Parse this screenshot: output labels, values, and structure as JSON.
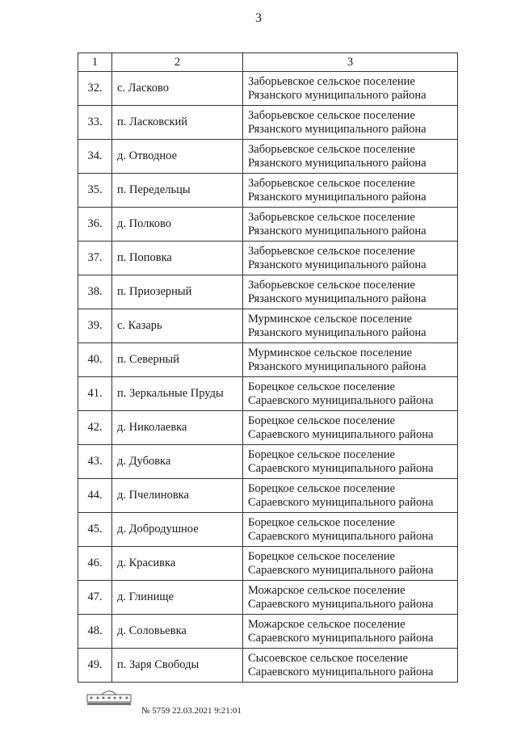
{
  "page_number": "3",
  "table": {
    "headers": [
      "1",
      "2",
      "3"
    ],
    "rows": [
      {
        "num": "32.",
        "name": "с. Ласково",
        "area": [
          "Заборьевское сельское поселение",
          "Рязанского муниципального района"
        ]
      },
      {
        "num": "33.",
        "name": "п. Ласковский",
        "area": [
          "Заборьевское сельское поселение",
          "Рязанского муниципального района"
        ]
      },
      {
        "num": "34.",
        "name": "д. Отводное",
        "area": [
          "Заборьевское сельское поселение",
          "Рязанского муниципального района"
        ]
      },
      {
        "num": "35.",
        "name": "п. Передельцы",
        "area": [
          "Заборьевское сельское поселение",
          "Рязанского муниципального района"
        ]
      },
      {
        "num": "36.",
        "name": "д. Полково",
        "area": [
          "Заборьевское сельское поселение",
          "Рязанского муниципального района"
        ]
      },
      {
        "num": "37.",
        "name": "п. Поповка",
        "area": [
          "Заборьевское сельское поселение",
          "Рязанского муниципального района"
        ]
      },
      {
        "num": "38.",
        "name": "п. Приозерный",
        "area": [
          "Заборьевское сельское поселение",
          "Рязанского муниципального района"
        ]
      },
      {
        "num": "39.",
        "name": "с. Казарь",
        "area": [
          "Мурминское сельское поселение",
          "Рязанского муниципального района"
        ]
      },
      {
        "num": "40.",
        "name": "п. Северный",
        "area": [
          "Мурминское сельское поселение",
          "Рязанского муниципального района"
        ]
      },
      {
        "num": "41.",
        "name": "п. Зеркальные Пруды",
        "area": [
          "Борецкое сельское поселение",
          "Сараевского муниципального района"
        ]
      },
      {
        "num": "42.",
        "name": "д. Николаевка",
        "area": [
          "Борецкое сельское поселение",
          "Сараевского муниципального района"
        ]
      },
      {
        "num": "43.",
        "name": "д. Дубовка",
        "area": [
          "Борецкое сельское поселение",
          "Сараевского муниципального района"
        ]
      },
      {
        "num": "44.",
        "name": "д. Пчелиновка",
        "area": [
          "Борецкое сельское поселение",
          "Сараевского муниципального района"
        ]
      },
      {
        "num": "45.",
        "name": "д. Добродушное",
        "area": [
          "Борецкое сельское поселение",
          "Сараевского муниципального района"
        ]
      },
      {
        "num": "46.",
        "name": "д. Красивка",
        "area": [
          "Борецкое сельское поселение",
          "Сараевского муниципального района"
        ]
      },
      {
        "num": "47.",
        "name": "д. Глинище",
        "area": [
          "Можарское сельское поселение",
          "Сараевского муниципального района"
        ]
      },
      {
        "num": "48.",
        "name": "д. Соловьевка",
        "area": [
          "Можарское сельское поселение",
          "Сараевского муниципального района"
        ]
      },
      {
        "num": "49.",
        "name": "п. Заря Свободы",
        "area": [
          "Сысоевское сельское поселение",
          "Сараевского муниципального района"
        ]
      }
    ]
  },
  "footer": {
    "stamp": "№ 5759  22.03.2021 9:21:01"
  }
}
